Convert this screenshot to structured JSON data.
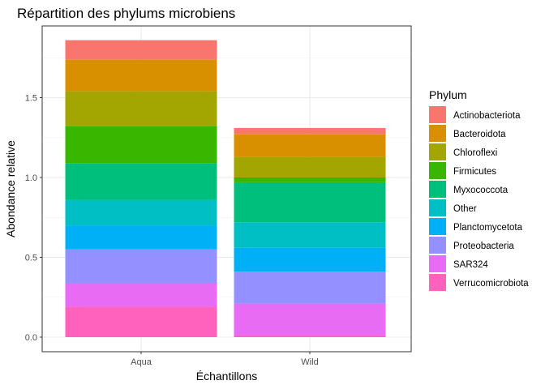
{
  "chart_data": {
    "type": "bar",
    "stacked": true,
    "title": "Répartition des phylums microbiens",
    "xlabel": "Échantillons",
    "ylabel": "Abondance relative",
    "categories": [
      "Aqua",
      "Wild"
    ],
    "ylim": [
      0,
      1.9
    ],
    "y_ticks": [
      "0.0",
      "0.5",
      "1.0",
      "1.5"
    ],
    "y_tick_values": [
      0,
      0.5,
      1.0,
      1.5
    ],
    "grid": true,
    "legend_title": "Phylum",
    "legend_position": "right",
    "series": [
      {
        "name": "Actinobacteriota",
        "color": "#F8766D",
        "values": [
          0.12,
          0.04
        ]
      },
      {
        "name": "Bacteroidota",
        "color": "#D89000",
        "values": [
          0.2,
          0.14
        ]
      },
      {
        "name": "Chloroflexi",
        "color": "#A3A500",
        "values": [
          0.22,
          0.13
        ]
      },
      {
        "name": "Firmicutes",
        "color": "#39B600",
        "values": [
          0.23,
          0.03
        ]
      },
      {
        "name": "Myxococcota",
        "color": "#00BF7D",
        "values": [
          0.23,
          0.25
        ]
      },
      {
        "name": "Other",
        "color": "#00BFC4",
        "values": [
          0.16,
          0.16
        ]
      },
      {
        "name": "Planctomycetota",
        "color": "#00B0F6",
        "values": [
          0.15,
          0.15
        ]
      },
      {
        "name": "Proteobacteria",
        "color": "#9590FF",
        "values": [
          0.21,
          0.2
        ]
      },
      {
        "name": "SAR324",
        "color": "#E76BF3",
        "values": [
          0.15,
          0.2
        ]
      },
      {
        "name": "Verrucomicrobiota",
        "color": "#FF62BC",
        "values": [
          0.19,
          0.01
        ]
      }
    ]
  }
}
